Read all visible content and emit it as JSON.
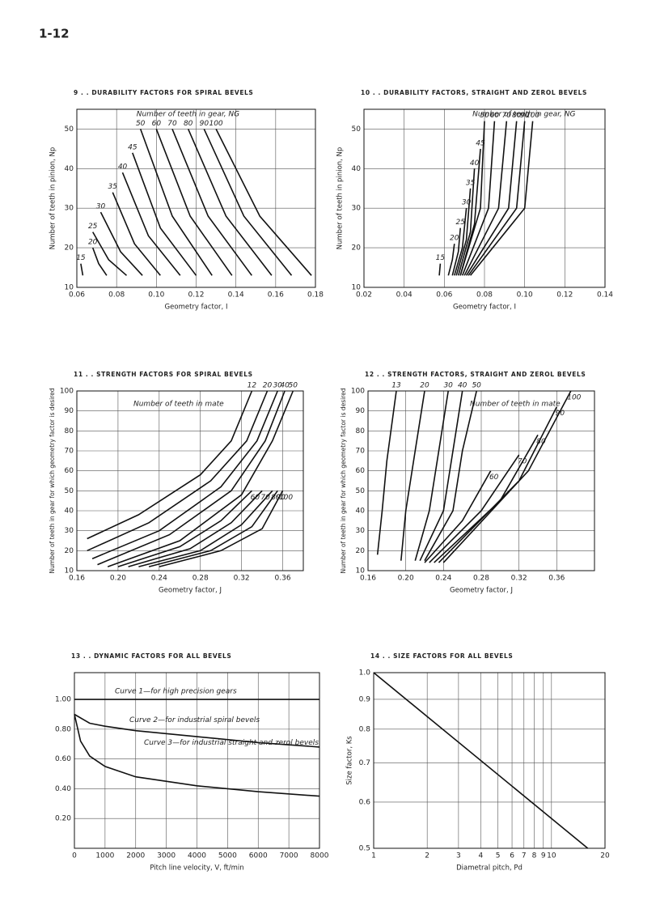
{
  "page_number": "1-12",
  "chart_data": [
    {
      "type": "line",
      "title": "9 . . DURABILITY FACTORS FOR SPIRAL BEVELS",
      "xlabel": "Geometry factor, I",
      "ylabel": "Number of teeth in pinion, Np",
      "annotation": "Number of teeth in gear, NG",
      "color": "#111111",
      "grid": true,
      "xlim": [
        0.06,
        0.18
      ],
      "xticks": [
        0.06,
        0.08,
        {
          "value": 0.1,
          "label": "0.10"
        },
        0.12,
        0.14,
        0.16,
        0.18
      ],
      "ylim": [
        10,
        55
      ],
      "yticks": [
        10,
        20,
        30,
        40,
        50
      ],
      "series": [
        {
          "name": "15",
          "x": [
            0.062,
            0.063
          ],
          "values": [
            16,
            13
          ]
        },
        {
          "name": "20",
          "x": [
            0.068,
            0.071,
            0.075
          ],
          "values": [
            20,
            16,
            13
          ]
        },
        {
          "name": "25",
          "x": [
            0.068,
            0.076,
            0.085
          ],
          "values": [
            24,
            17,
            13
          ]
        },
        {
          "name": "30",
          "x": [
            0.072,
            0.082,
            0.093
          ],
          "values": [
            29,
            19,
            13
          ]
        },
        {
          "name": "35",
          "x": [
            0.078,
            0.089,
            0.102
          ],
          "values": [
            34,
            21,
            13
          ]
        },
        {
          "name": "40",
          "x": [
            0.083,
            0.096,
            0.112
          ],
          "values": [
            39,
            23,
            13
          ]
        },
        {
          "name": "45",
          "x": [
            0.088,
            0.102,
            0.12
          ],
          "values": [
            44,
            25,
            13
          ]
        },
        {
          "name": "50",
          "x": [
            0.092,
            0.108,
            0.128
          ],
          "values": [
            50,
            28,
            13
          ]
        },
        {
          "name": "60",
          "x": [
            0.1,
            0.117,
            0.138
          ],
          "values": [
            50,
            28,
            13
          ]
        },
        {
          "name": "70",
          "x": [
            0.108,
            0.126,
            0.148
          ],
          "values": [
            50,
            28,
            13
          ]
        },
        {
          "name": "80",
          "x": [
            0.116,
            0.135,
            0.158
          ],
          "values": [
            50,
            28,
            13
          ]
        },
        {
          "name": "90",
          "x": [
            0.124,
            0.144,
            0.168
          ],
          "values": [
            50,
            28,
            13
          ]
        },
        {
          "name": "100",
          "x": [
            0.13,
            0.152,
            0.178
          ],
          "values": [
            50,
            28,
            13
          ]
        }
      ]
    },
    {
      "type": "line",
      "title": "10 . . DURABILITY FACTORS, STRAIGHT AND ZEROL BEVELS",
      "xlabel": "Geometry factor, I",
      "ylabel": "Number of teeth in pinion, Np",
      "annotation": "Number of teeth in gear, NG",
      "color": "#111111",
      "grid": true,
      "xlim": [
        0.02,
        0.14
      ],
      "xticks": [
        0.02,
        0.04,
        0.06,
        0.08,
        {
          "value": 0.1,
          "label": "0.10"
        },
        0.12,
        0.14
      ],
      "ylim": [
        10,
        55
      ],
      "yticks": [
        10,
        20,
        30,
        40,
        50
      ],
      "series": [
        {
          "name": "15",
          "x": [
            0.0575,
            0.058
          ],
          "values": [
            13,
            16
          ]
        },
        {
          "name": "20",
          "x": [
            0.062,
            0.064,
            0.065
          ],
          "values": [
            13,
            17,
            21
          ]
        },
        {
          "name": "25",
          "x": [
            0.064,
            0.067,
            0.068
          ],
          "values": [
            13,
            19,
            25
          ]
        },
        {
          "name": "30",
          "x": [
            0.065,
            0.069,
            0.071
          ],
          "values": [
            13,
            20,
            30
          ]
        },
        {
          "name": "35",
          "x": [
            0.066,
            0.071,
            0.073
          ],
          "values": [
            13,
            22,
            35
          ]
        },
        {
          "name": "40",
          "x": [
            0.067,
            0.073,
            0.075
          ],
          "values": [
            13,
            24,
            40
          ]
        },
        {
          "name": "45",
          "x": [
            0.068,
            0.075,
            0.078
          ],
          "values": [
            13,
            26,
            45
          ]
        },
        {
          "name": "50",
          "x": [
            0.068,
            0.078,
            0.08
          ],
          "values": [
            13,
            30,
            52
          ]
        },
        {
          "name": "60",
          "x": [
            0.069,
            0.082,
            0.085
          ],
          "values": [
            13,
            30,
            52
          ]
        },
        {
          "name": "70",
          "x": [
            0.07,
            0.087,
            0.091
          ],
          "values": [
            13,
            30,
            52
          ]
        },
        {
          "name": "80",
          "x": [
            0.071,
            0.092,
            0.096
          ],
          "values": [
            13,
            30,
            52
          ]
        },
        {
          "name": "90",
          "x": [
            0.072,
            0.096,
            0.1
          ],
          "values": [
            13,
            30,
            52
          ]
        },
        {
          "name": "100",
          "x": [
            0.073,
            0.1,
            0.104
          ],
          "values": [
            13,
            30,
            52
          ]
        }
      ]
    },
    {
      "type": "line",
      "title": "11 . . STRENGTH FACTORS FOR SPIRAL BEVELS",
      "xlabel": "Geometry factor, J",
      "ylabel": "Number of teeth in gear for which geometry factor is desired",
      "annotation": "Number of teeth in mate",
      "color": "#111111",
      "grid": true,
      "xlim": [
        0.16,
        0.38
      ],
      "xticks": [
        0.16,
        {
          "value": 0.2,
          "label": "0.20"
        },
        0.24,
        0.28,
        0.32,
        0.36
      ],
      "ylim": [
        10,
        100
      ],
      "yticks": [
        10,
        20,
        30,
        40,
        50,
        60,
        70,
        80,
        90,
        100
      ],
      "series": [
        {
          "name": "12",
          "x": [
            0.17,
            0.22,
            0.28,
            0.31,
            0.33
          ],
          "values": [
            26,
            38,
            58,
            75,
            100
          ]
        },
        {
          "name": "20",
          "x": [
            0.17,
            0.23,
            0.29,
            0.325,
            0.345
          ],
          "values": [
            20,
            34,
            55,
            75,
            100
          ]
        },
        {
          "name": "30",
          "x": [
            0.175,
            0.24,
            0.3,
            0.335,
            0.355
          ],
          "values": [
            16,
            30,
            52,
            75,
            100
          ]
        },
        {
          "name": "40",
          "x": [
            0.18,
            0.25,
            0.31,
            0.343,
            0.362
          ],
          "values": [
            13,
            28,
            50,
            75,
            100
          ]
        },
        {
          "name": "50",
          "x": [
            0.19,
            0.26,
            0.32,
            0.35,
            0.37
          ],
          "values": [
            12,
            25,
            48,
            75,
            100
          ]
        },
        {
          "name": "60",
          "x": [
            0.2,
            0.26,
            0.3,
            0.33
          ],
          "values": [
            12,
            22,
            35,
            50
          ]
        },
        {
          "name": "70",
          "x": [
            0.21,
            0.27,
            0.31,
            0.34
          ],
          "values": [
            12,
            21,
            34,
            50
          ]
        },
        {
          "name": "80",
          "x": [
            0.22,
            0.28,
            0.32,
            0.35
          ],
          "values": [
            12,
            20,
            33,
            50
          ]
        },
        {
          "name": "90",
          "x": [
            0.23,
            0.29,
            0.33,
            0.355
          ],
          "values": [
            12,
            20,
            32,
            50
          ]
        },
        {
          "name": "100",
          "x": [
            0.24,
            0.3,
            0.34,
            0.36
          ],
          "values": [
            12,
            20,
            31,
            50
          ]
        }
      ]
    },
    {
      "type": "line",
      "title": "12 . . STRENGTH FACTORS, STRAIGHT AND ZEROL BEVELS",
      "xlabel": "Geometry factor, J",
      "ylabel": "Number of teeth in gear for which geometry factor is desired",
      "annotation": "Number of teeth in mate",
      "color": "#111111",
      "grid": true,
      "xlim": [
        0.16,
        0.4
      ],
      "xticks": [
        0.16,
        {
          "value": 0.2,
          "label": "0.20"
        },
        0.24,
        0.28,
        0.32,
        0.36
      ],
      "ylim": [
        10,
        100
      ],
      "yticks": [
        10,
        20,
        30,
        40,
        50,
        60,
        70,
        80,
        90,
        100
      ],
      "series": [
        {
          "name": "13",
          "x": [
            0.17,
            0.175,
            0.18,
            0.19
          ],
          "values": [
            18,
            40,
            65,
            100
          ]
        },
        {
          "name": "20",
          "x": [
            0.195,
            0.2,
            0.21,
            0.22
          ],
          "values": [
            15,
            40,
            70,
            100
          ]
        },
        {
          "name": "30",
          "x": [
            0.21,
            0.225,
            0.235,
            0.245
          ],
          "values": [
            15,
            40,
            70,
            100
          ]
        },
        {
          "name": "40",
          "x": [
            0.215,
            0.24,
            0.25,
            0.26
          ],
          "values": [
            15,
            40,
            70,
            100
          ]
        },
        {
          "name": "50",
          "x": [
            0.22,
            0.25,
            0.26,
            0.275
          ],
          "values": [
            15,
            40,
            70,
            100
          ]
        },
        {
          "name": "60",
          "x": [
            0.22,
            0.26,
            0.29
          ],
          "values": [
            14,
            35,
            60
          ]
        },
        {
          "name": "70",
          "x": [
            0.225,
            0.28,
            0.32
          ],
          "values": [
            14,
            40,
            68
          ]
        },
        {
          "name": "80",
          "x": [
            0.23,
            0.3,
            0.34
          ],
          "values": [
            14,
            45,
            78
          ]
        },
        {
          "name": "90",
          "x": [
            0.235,
            0.32,
            0.36
          ],
          "values": [
            14,
            55,
            92
          ]
        },
        {
          "name": "100",
          "x": [
            0.24,
            0.33,
            0.375
          ],
          "values": [
            14,
            60,
            100
          ]
        }
      ]
    },
    {
      "type": "line",
      "title": "13 . . DYNAMIC FACTORS FOR ALL BEVELS",
      "xlabel": "Pitch line velocity, V, ft/min",
      "color": "#111111",
      "grid": true,
      "xlim": [
        0,
        8000
      ],
      "xticks": [
        0,
        1000,
        2000,
        3000,
        4000,
        5000,
        6000,
        7000,
        8000
      ],
      "ylim": [
        0,
        1.18
      ],
      "yticks": [
        {
          "value": 0.2,
          "label": "0.20"
        },
        {
          "value": 0.4,
          "label": "0.40"
        },
        {
          "value": 0.6,
          "label": "0.60"
        },
        {
          "value": 0.8,
          "label": "0.80"
        },
        {
          "value": 1,
          "label": "1.00"
        }
      ],
      "series": [
        {
          "name": "Curve 1—for high precision gears",
          "x": [
            0,
            8000
          ],
          "values": [
            1,
            1
          ]
        },
        {
          "name": "Curve 2—for industrial spiral bevels",
          "x": [
            0,
            500,
            1000,
            2000,
            4000,
            6000,
            8000
          ],
          "values": [
            0.9,
            0.84,
            0.82,
            0.79,
            0.75,
            0.71,
            0.68
          ]
        },
        {
          "name": "Curve 3—for industrial straight and zerol bevels",
          "x": [
            0,
            200,
            500,
            1000,
            2000,
            4000,
            6000,
            8000
          ],
          "values": [
            0.9,
            0.72,
            0.62,
            0.55,
            0.48,
            0.42,
            0.38,
            0.35
          ]
        }
      ]
    },
    {
      "type": "line",
      "title": "14 . . SIZE FACTORS FOR ALL BEVELS",
      "xlabel": "Diametral pitch, Pd",
      "ylabel": "Size factor, Ks",
      "color": "#111111",
      "grid": true,
      "xlog": true,
      "ylog": true,
      "xlim": [
        1,
        20
      ],
      "xticks": [
        1,
        2,
        3,
        4,
        5,
        6,
        7,
        8,
        9,
        10,
        20
      ],
      "ylim": [
        0.5,
        1
      ],
      "yticks": [
        0.5,
        0.6,
        0.7,
        0.8,
        0.9,
        {
          "value": 1,
          "label": "1.0"
        }
      ],
      "series": [
        {
          "x": [
            1,
            16
          ],
          "values": [
            1,
            0.5
          ]
        }
      ]
    }
  ]
}
